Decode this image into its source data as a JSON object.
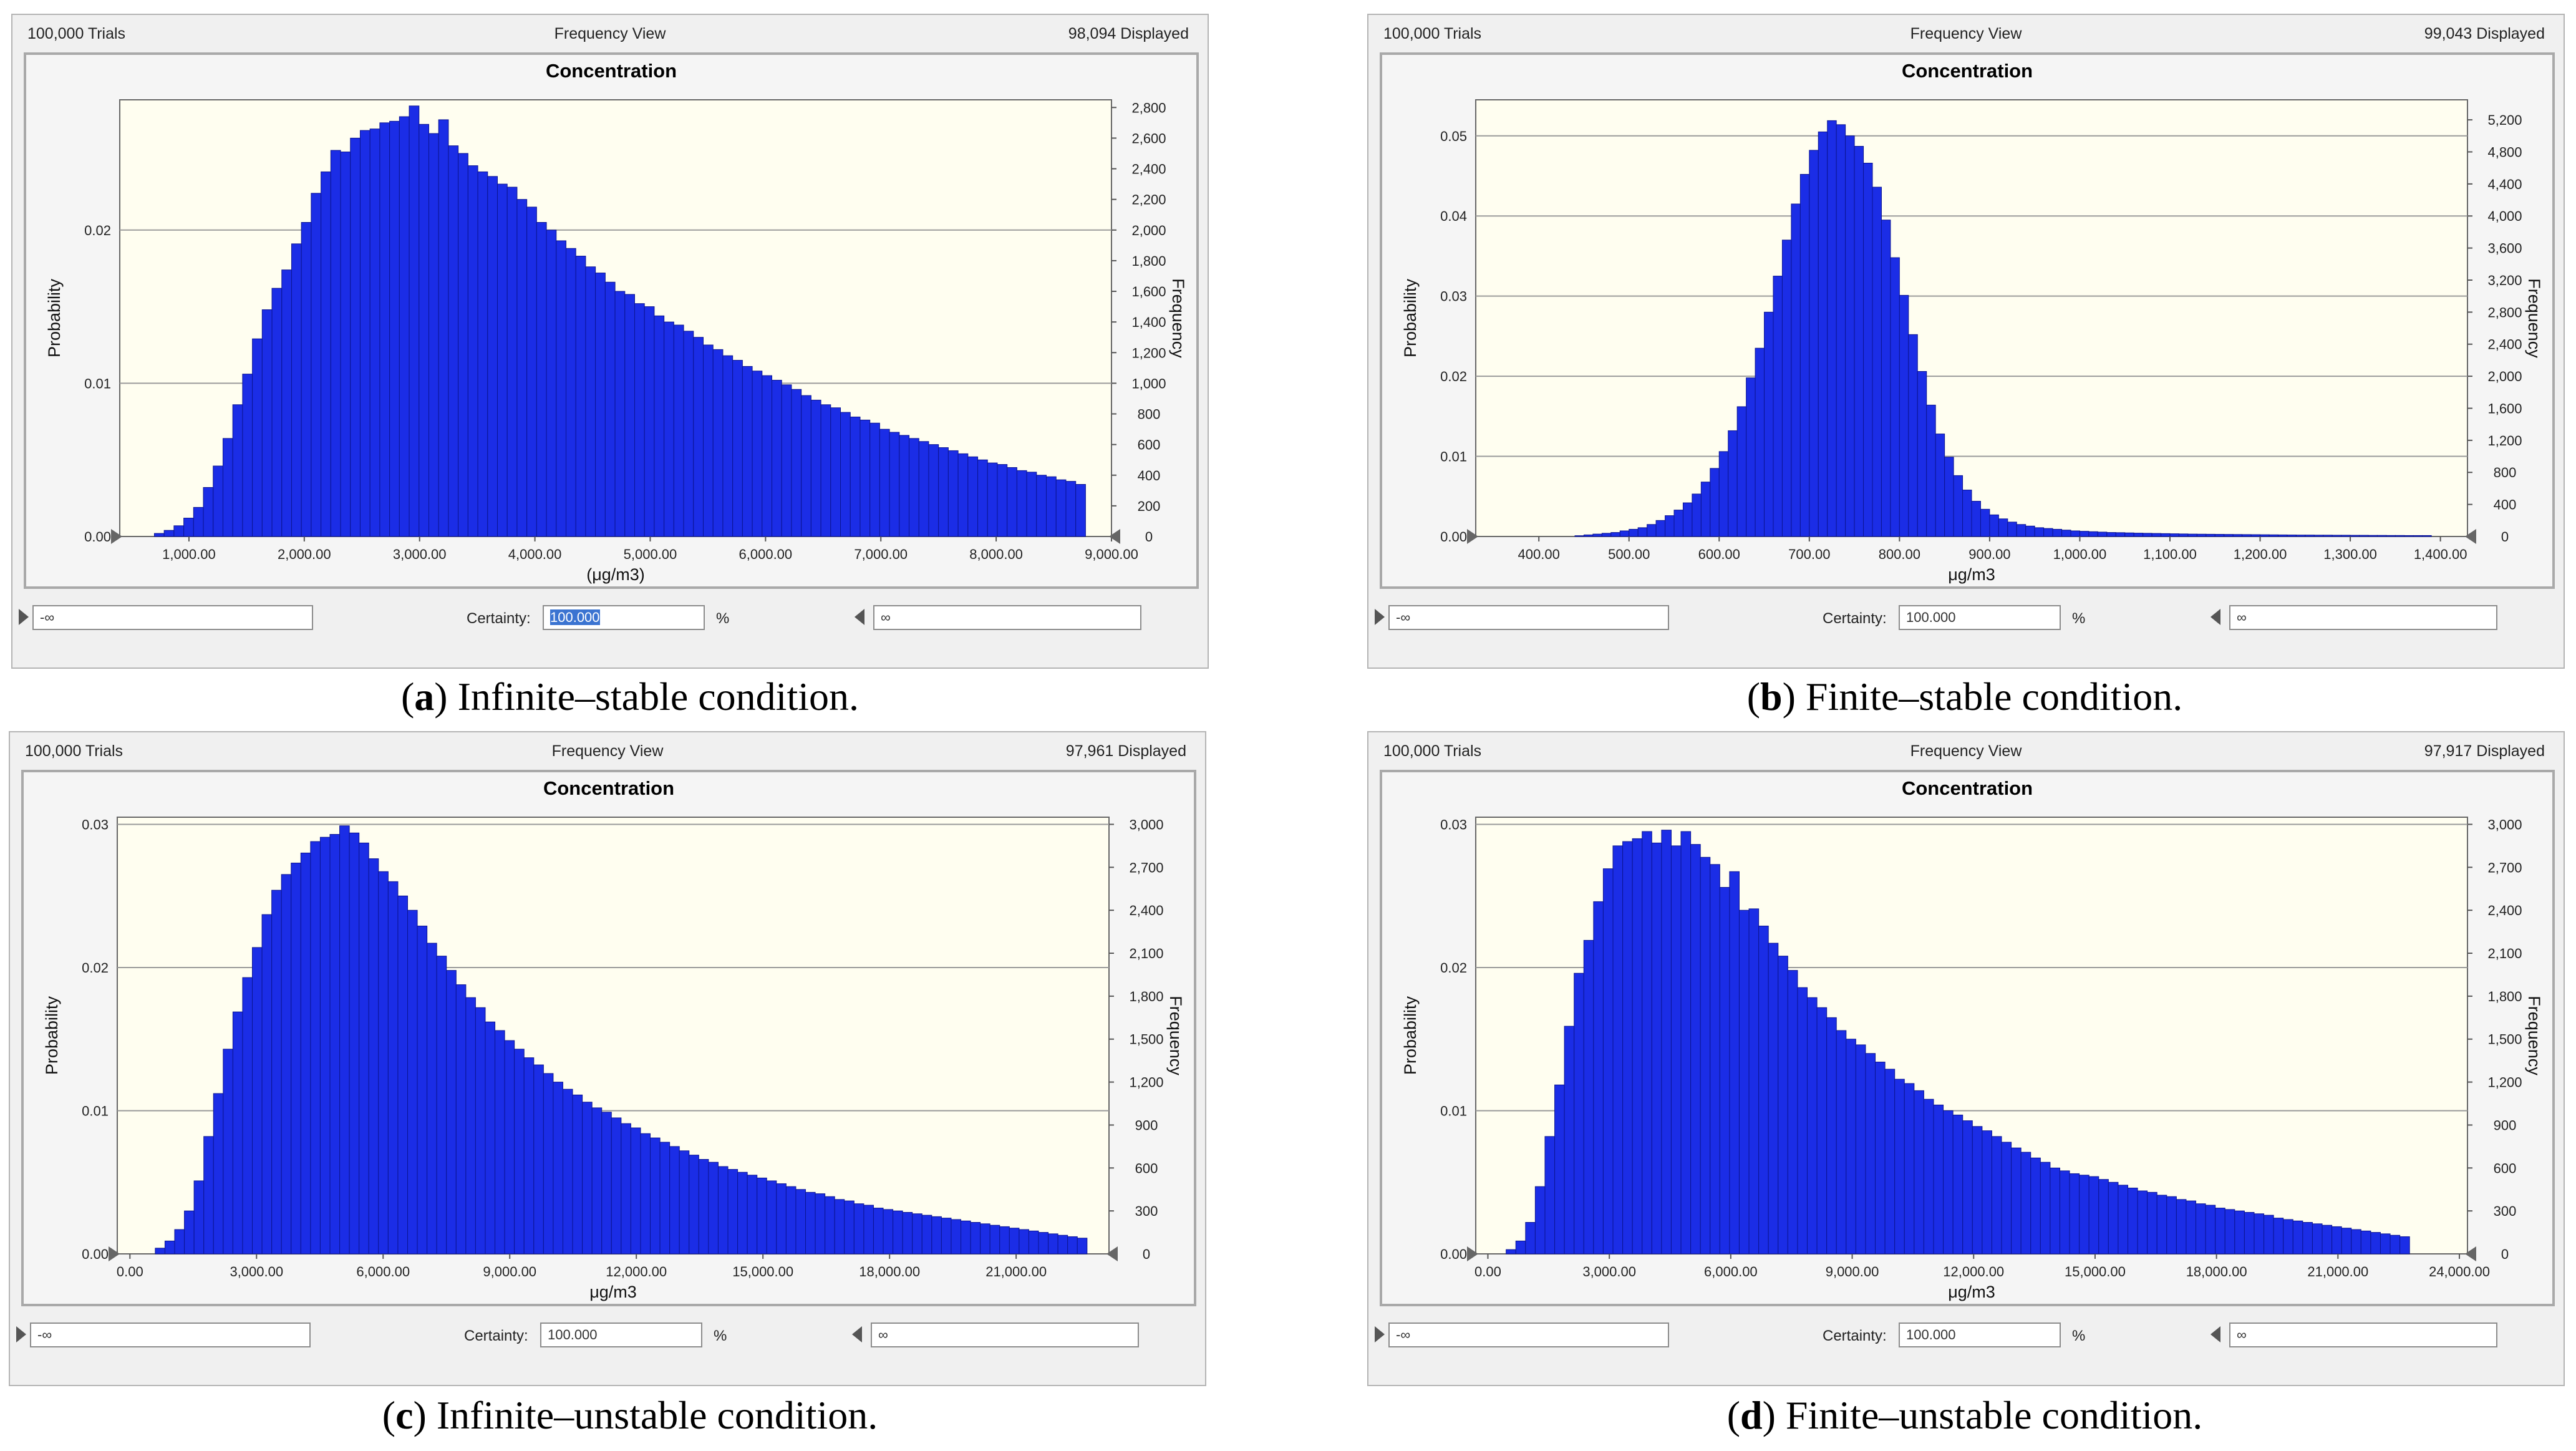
{
  "colors": {
    "bar": "#1b2de6",
    "bar_edge": "#0b1491",
    "plot_bg": "#fffef0",
    "grid": "#9a9a9a"
  },
  "panels": [
    {
      "trials": "100,000 Trials",
      "view": "Frequency View",
      "displayed": "98,094 Displayed",
      "certainty_label": "Certainty:",
      "certainty": "100.000",
      "percent": "%",
      "lower": "-∞",
      "upper": "∞",
      "caption_letter": "a",
      "caption_text": "Infinite–stable condition."
    },
    {
      "trials": "100,000 Trials",
      "view": "Frequency View",
      "displayed": "99,043 Displayed",
      "certainty_label": "Certainty:",
      "certainty": "100.000",
      "percent": "%",
      "lower": "-∞",
      "upper": "∞",
      "caption_letter": "b",
      "caption_text": "Finite–stable condition."
    },
    {
      "trials": "100,000 Trials",
      "view": "Frequency View",
      "displayed": "97,961 Displayed",
      "certainty_label": "Certainty:",
      "certainty": "100.000",
      "percent": "%",
      "lower": "-∞",
      "upper": "∞",
      "caption_letter": "c",
      "caption_text": "Infinite–unstable condition."
    },
    {
      "trials": "100,000 Trials",
      "view": "Frequency View",
      "displayed": "97,917 Displayed",
      "certainty_label": "Certainty:",
      "certainty": "100.000",
      "percent": "%",
      "lower": "-∞",
      "upper": "∞",
      "caption_letter": "d",
      "caption_text": "Finite–unstable condition."
    }
  ],
  "chart_data": [
    {
      "type": "bar",
      "title": "Concentration",
      "xlabel": "(μg/m3)",
      "ylabel": "Probability",
      "y2label": "Frequency",
      "xlim": [
        400,
        9000
      ],
      "ylim": [
        0,
        0.0285
      ],
      "y2lim": [
        0,
        2850
      ],
      "xticks": [
        "1,000.00",
        "2,000.00",
        "3,000.00",
        "4,000.00",
        "5,000.00",
        "6,000.00",
        "7,000.00",
        "8,000.00",
        "9,000.00"
      ],
      "xtick_values": [
        1000,
        2000,
        3000,
        4000,
        5000,
        6000,
        7000,
        8000,
        9000
      ],
      "yticks": [
        "0.00",
        "0.01",
        "0.02"
      ],
      "ytick_values": [
        0,
        0.01,
        0.02
      ],
      "y2ticks": [
        "0",
        "200",
        "400",
        "600",
        "800",
        "1,000",
        "1,200",
        "1,400",
        "1,600",
        "1,800",
        "2,000",
        "2,200",
        "2,400",
        "2,600",
        "2,800"
      ],
      "y2tick_values": [
        0,
        200,
        400,
        600,
        800,
        1000,
        1200,
        1400,
        1600,
        1800,
        2000,
        2200,
        2400,
        2600,
        2800
      ],
      "bin_start": 700,
      "bin_width": 85,
      "values": [
        20,
        40,
        70,
        120,
        190,
        320,
        460,
        640,
        860,
        1060,
        1290,
        1480,
        1620,
        1740,
        1910,
        2050,
        2240,
        2380,
        2520,
        2510,
        2600,
        2650,
        2660,
        2700,
        2710,
        2740,
        2810,
        2690,
        2630,
        2720,
        2550,
        2500,
        2420,
        2380,
        2350,
        2300,
        2280,
        2200,
        2150,
        2050,
        2000,
        1930,
        1880,
        1830,
        1760,
        1720,
        1660,
        1600,
        1580,
        1520,
        1500,
        1440,
        1400,
        1380,
        1340,
        1300,
        1250,
        1220,
        1180,
        1150,
        1110,
        1080,
        1050,
        1020,
        990,
        960,
        920,
        890,
        860,
        840,
        810,
        780,
        760,
        740,
        700,
        680,
        660,
        640,
        620,
        600,
        580,
        560,
        540,
        520,
        500,
        480,
        470,
        450,
        430,
        420,
        400,
        390,
        370,
        360,
        340
      ]
    },
    {
      "type": "bar",
      "title": "Concentration",
      "xlabel": "μg/m3",
      "ylabel": "Probability",
      "y2label": "Frequency",
      "xlim": [
        330,
        1430
      ],
      "ylim": [
        0,
        0.0545
      ],
      "y2lim": [
        0,
        5450
      ],
      "xticks": [
        "400.00",
        "500.00",
        "600.00",
        "700.00",
        "800.00",
        "900.00",
        "1,000.00",
        "1,100.00",
        "1,200.00",
        "1,300.00",
        "1,400.00"
      ],
      "xtick_values": [
        400,
        500,
        600,
        700,
        800,
        900,
        1000,
        1100,
        1200,
        1300,
        1400
      ],
      "yticks": [
        "0.00",
        "0.01",
        "0.02",
        "0.03",
        "0.04",
        "0.05"
      ],
      "ytick_values": [
        0,
        0.01,
        0.02,
        0.03,
        0.04,
        0.05
      ],
      "y2ticks": [
        "0",
        "400",
        "800",
        "1,200",
        "1,600",
        "2,000",
        "2,400",
        "2,800",
        "3,200",
        "3,600",
        "4,000",
        "4,400",
        "4,800",
        "5,200"
      ],
      "y2tick_values": [
        0,
        400,
        800,
        1200,
        1600,
        2000,
        2400,
        2800,
        3200,
        3600,
        4000,
        4400,
        4800,
        5200
      ],
      "bin_start": 440,
      "bin_width": 10,
      "values": [
        10,
        20,
        30,
        40,
        50,
        70,
        90,
        110,
        150,
        200,
        260,
        330,
        420,
        530,
        680,
        850,
        1060,
        1320,
        1620,
        1980,
        2350,
        2800,
        3250,
        3700,
        4150,
        4520,
        4820,
        5050,
        5190,
        5140,
        5000,
        4870,
        4660,
        4360,
        3950,
        3480,
        3010,
        2520,
        2060,
        1640,
        1280,
        990,
        760,
        580,
        440,
        340,
        270,
        220,
        180,
        150,
        130,
        110,
        100,
        90,
        80,
        70,
        65,
        60,
        55,
        50,
        48,
        45,
        42,
        40,
        38,
        36,
        34,
        32,
        30,
        29,
        28,
        27,
        26,
        25,
        24,
        23,
        22,
        21,
        20,
        19,
        18,
        18,
        17,
        17,
        16,
        16,
        15,
        15,
        14,
        14,
        13,
        13,
        12,
        12,
        12
      ]
    },
    {
      "type": "bar",
      "title": "Concentration",
      "xlabel": "μg/m3",
      "ylabel": "Probability",
      "y2label": "Frequency",
      "xlim": [
        -300,
        23200
      ],
      "ylim": [
        0,
        0.0305
      ],
      "y2lim": [
        0,
        3050
      ],
      "xticks": [
        "0.00",
        "3,000.00",
        "6,000.00",
        "9,000.00",
        "12,000.00",
        "15,000.00",
        "18,000.00",
        "21,000.00"
      ],
      "xtick_values": [
        0,
        3000,
        6000,
        9000,
        12000,
        15000,
        18000,
        21000
      ],
      "yticks": [
        "0.00",
        "0.01",
        "0.02",
        "0.03"
      ],
      "ytick_values": [
        0,
        0.01,
        0.02,
        0.03
      ],
      "y2ticks": [
        "0",
        "300",
        "600",
        "900",
        "1,200",
        "1,500",
        "1,800",
        "2,100",
        "2,400",
        "2,700",
        "3,000"
      ],
      "y2tick_values": [
        0,
        300,
        600,
        900,
        1200,
        1500,
        1800,
        2100,
        2400,
        2700,
        3000
      ],
      "bin_start": 600,
      "bin_width": 230,
      "values": [
        40,
        90,
        170,
        300,
        510,
        820,
        1120,
        1430,
        1690,
        1930,
        2140,
        2370,
        2540,
        2650,
        2730,
        2800,
        2880,
        2910,
        2930,
        2990,
        2940,
        2870,
        2760,
        2670,
        2600,
        2500,
        2400,
        2290,
        2170,
        2080,
        1980,
        1880,
        1790,
        1720,
        1620,
        1560,
        1490,
        1430,
        1370,
        1320,
        1260,
        1200,
        1150,
        1110,
        1060,
        1020,
        990,
        950,
        910,
        880,
        840,
        810,
        780,
        750,
        720,
        690,
        660,
        640,
        610,
        590,
        570,
        550,
        530,
        510,
        490,
        470,
        450,
        430,
        420,
        400,
        380,
        370,
        350,
        340,
        320,
        310,
        300,
        290,
        280,
        270,
        260,
        250,
        240,
        230,
        220,
        210,
        200,
        190,
        180,
        170,
        160,
        150,
        140,
        130,
        120,
        110
      ]
    },
    {
      "type": "bar",
      "title": "Concentration",
      "xlabel": "μg/m3",
      "ylabel": "Probability",
      "y2label": "Frequency",
      "xlim": [
        -300,
        24200
      ],
      "ylim": [
        0,
        0.0305
      ],
      "y2lim": [
        0,
        3050
      ],
      "xticks": [
        "0.00",
        "3,000.00",
        "6,000.00",
        "9,000.00",
        "12,000.00",
        "15,000.00",
        "18,000.00",
        "21,000.00",
        "24,000.00"
      ],
      "xtick_values": [
        0,
        3000,
        6000,
        9000,
        12000,
        15000,
        18000,
        21000,
        24000
      ],
      "yticks": [
        "0.00",
        "0.01",
        "0.02",
        "0.03"
      ],
      "ytick_values": [
        0,
        0.01,
        0.02,
        0.03
      ],
      "y2ticks": [
        "0",
        "300",
        "600",
        "900",
        "1,200",
        "1,500",
        "1,800",
        "2,100",
        "2,400",
        "2,700",
        "3,000"
      ],
      "y2tick_values": [
        0,
        300,
        600,
        900,
        1200,
        1500,
        1800,
        2100,
        2400,
        2700,
        3000
      ],
      "bin_start": 450,
      "bin_width": 240,
      "values": [
        30,
        90,
        220,
        470,
        820,
        1180,
        1590,
        1960,
        2190,
        2460,
        2690,
        2850,
        2880,
        2900,
        2950,
        2870,
        2960,
        2850,
        2950,
        2860,
        2770,
        2720,
        2560,
        2670,
        2400,
        2410,
        2290,
        2170,
        2080,
        1980,
        1860,
        1790,
        1720,
        1650,
        1560,
        1500,
        1460,
        1400,
        1340,
        1290,
        1220,
        1190,
        1140,
        1080,
        1040,
        1000,
        970,
        930,
        890,
        860,
        820,
        780,
        740,
        710,
        670,
        640,
        600,
        580,
        560,
        550,
        540,
        520,
        500,
        480,
        460,
        440,
        430,
        410,
        400,
        380,
        370,
        350,
        340,
        320,
        310,
        300,
        290,
        280,
        270,
        250,
        240,
        230,
        220,
        210,
        200,
        190,
        180,
        170,
        160,
        150,
        140,
        130,
        120
      ]
    }
  ]
}
